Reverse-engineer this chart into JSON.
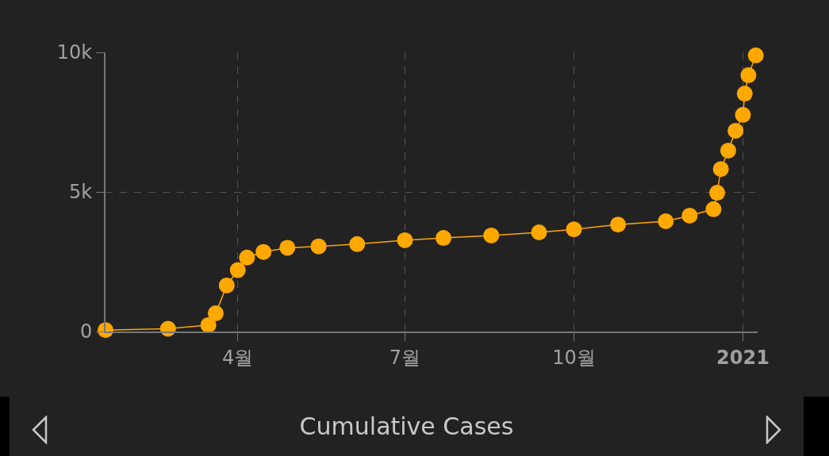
{
  "chart_data": {
    "type": "line",
    "title": "Cumulative Cases",
    "x": [
      "2020-01-20",
      "2020-02-23",
      "2020-03-16",
      "2020-03-20",
      "2020-03-26",
      "2020-04-01",
      "2020-04-06",
      "2020-04-15",
      "2020-04-28",
      "2020-05-15",
      "2020-06-05",
      "2020-07-01",
      "2020-07-22",
      "2020-08-17",
      "2020-09-12",
      "2020-10-01",
      "2020-10-25",
      "2020-11-20",
      "2020-12-03",
      "2020-12-16",
      "2020-12-18",
      "2020-12-20",
      "2020-12-24",
      "2020-12-28",
      "2021-01-01",
      "2021-01-02",
      "2021-01-04",
      "2021-01-08"
    ],
    "series": [
      {
        "color": "#ffa800",
        "values": [
          50,
          100,
          230,
          650,
          1650,
          2200,
          2650,
          2850,
          3000,
          3050,
          3130,
          3270,
          3350,
          3440,
          3550,
          3660,
          3830,
          3950,
          4150,
          4380,
          4970,
          5820,
          6480,
          7190,
          7760,
          8520,
          9180,
          9890
        ]
      }
    ],
    "xlim": [
      "2020-01-20",
      "2021-01-09"
    ],
    "xticks": [
      {
        "value": "2020-04-01",
        "label": "4월"
      },
      {
        "value": "2020-07-01",
        "label": "7월"
      },
      {
        "value": "2020-10-01",
        "label": "10월"
      },
      {
        "value": "2021-01-01",
        "label": "2021"
      }
    ],
    "ylim": [
      0,
      10000
    ],
    "yticks": [
      {
        "value": 0,
        "label": "0"
      },
      {
        "value": 5000,
        "label": "5k"
      },
      {
        "value": 10000,
        "label": "10k"
      }
    ],
    "grid": true,
    "marker": "circle",
    "line_style": "solid"
  }
}
